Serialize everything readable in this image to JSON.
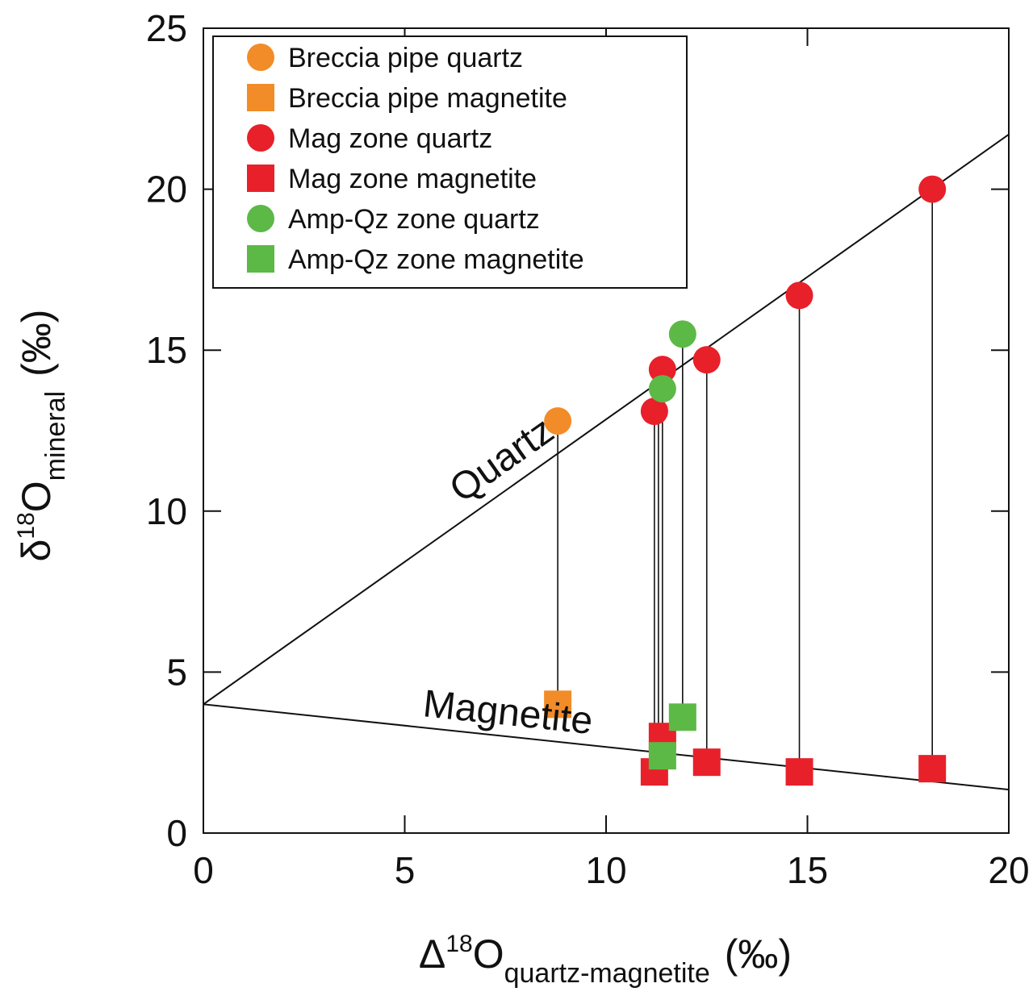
{
  "chart_data": {
    "type": "scatter",
    "xlim": [
      0,
      20
    ],
    "ylim": [
      0,
      25
    ],
    "xticks": [
      "0",
      "5",
      "10",
      "15",
      "20"
    ],
    "yticks": [
      "0",
      "5",
      "10",
      "15",
      "20",
      "25"
    ],
    "grid": false,
    "legend_position": "top-left",
    "xlabel": {
      "prefix": "Δ",
      "sup": "18",
      "main": "O",
      "sub": "quartz-magnetite",
      "unit": "(‰)"
    },
    "ylabel": {
      "prefix": "δ",
      "sup": "18",
      "main": "O",
      "sub": "mineral",
      "unit": "(‰)"
    },
    "series": [
      {
        "name": "Breccia pipe quartz",
        "marker": "circle",
        "color": "#f28c28",
        "points": [
          {
            "x": 8.8,
            "y": 12.8
          }
        ]
      },
      {
        "name": "Breccia pipe magnetite",
        "marker": "square",
        "color": "#f28c28",
        "points": [
          {
            "x": 8.8,
            "y": 4.0
          }
        ]
      },
      {
        "name": "Mag zone quartz",
        "marker": "circle",
        "color": "#e8202a",
        "points": [
          {
            "x": 11.2,
            "y": 13.1
          },
          {
            "x": 11.4,
            "y": 14.4
          },
          {
            "x": 12.5,
            "y": 14.7
          },
          {
            "x": 14.8,
            "y": 16.7
          },
          {
            "x": 18.1,
            "y": 20.0
          }
        ]
      },
      {
        "name": "Mag zone magnetite",
        "marker": "square",
        "color": "#e8202a",
        "points": [
          {
            "x": 11.2,
            "y": 1.9
          },
          {
            "x": 11.4,
            "y": 3.0
          },
          {
            "x": 12.5,
            "y": 2.2
          },
          {
            "x": 14.8,
            "y": 1.9
          },
          {
            "x": 18.1,
            "y": 2.0
          }
        ]
      },
      {
        "name": "Amp-Qz zone quartz",
        "marker": "circle",
        "color": "#5cb946",
        "points": [
          {
            "x": 11.4,
            "y": 13.8
          },
          {
            "x": 11.9,
            "y": 15.5
          }
        ]
      },
      {
        "name": "Amp-Qz zone magnetite",
        "marker": "square",
        "color": "#5cb946",
        "points": [
          {
            "x": 11.4,
            "y": 2.4
          },
          {
            "x": 11.9,
            "y": 3.6
          }
        ]
      }
    ],
    "tie_lines": [
      {
        "x": 8.8,
        "y1": 4.0,
        "y2": 12.8
      },
      {
        "x": 11.2,
        "y1": 1.9,
        "y2": 13.1
      },
      {
        "x": 11.3,
        "y1": 2.4,
        "y2": 13.8
      },
      {
        "x": 11.4,
        "y1": 3.0,
        "y2": 14.4
      },
      {
        "x": 11.9,
        "y1": 3.6,
        "y2": 15.5
      },
      {
        "x": 12.5,
        "y1": 2.2,
        "y2": 14.7
      },
      {
        "x": 14.8,
        "y1": 1.9,
        "y2": 16.7
      },
      {
        "x": 18.1,
        "y1": 2.0,
        "y2": 20.0
      }
    ],
    "reference_lines": [
      {
        "label": "Quartz",
        "x1": 0,
        "y1": 4.0,
        "x2": 20,
        "y2": 21.7
      },
      {
        "label": "Magnetite",
        "x1": 0,
        "y1": 4.0,
        "x2": 20,
        "y2": 1.35
      }
    ]
  }
}
